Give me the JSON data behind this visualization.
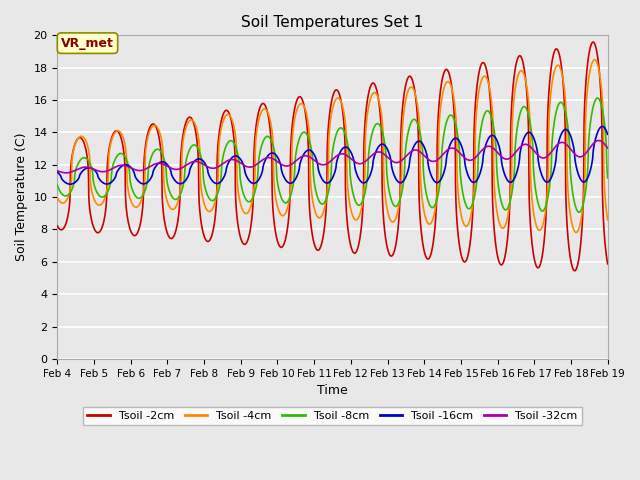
{
  "title": "Soil Temperatures Set 1",
  "xlabel": "Time",
  "ylabel": "Soil Temperature (C)",
  "ylim": [
    0,
    20
  ],
  "yticks": [
    0,
    2,
    4,
    6,
    8,
    10,
    12,
    14,
    16,
    18,
    20
  ],
  "xtick_labels": [
    "Feb 4",
    "Feb 5",
    "Feb 6",
    "Feb 7",
    "Feb 8",
    "Feb 9",
    "Feb 10",
    "Feb 11",
    "Feb 12",
    "Feb 13",
    "Feb 14",
    "Feb 15",
    "Feb 16",
    "Feb 17",
    "Feb 18",
    "Feb 19"
  ],
  "annotation_text": "VR_met",
  "colors": [
    "#cc0000",
    "#ff8800",
    "#33bb00",
    "#0000cc",
    "#aa00aa"
  ],
  "labels": [
    "Tsoil -2cm",
    "Tsoil -4cm",
    "Tsoil -8cm",
    "Tsoil -16cm",
    "Tsoil -32cm"
  ],
  "bg_color": "#e8e8e8",
  "grid_color": "#ffffff",
  "fig_bg": "#e8e8e8"
}
